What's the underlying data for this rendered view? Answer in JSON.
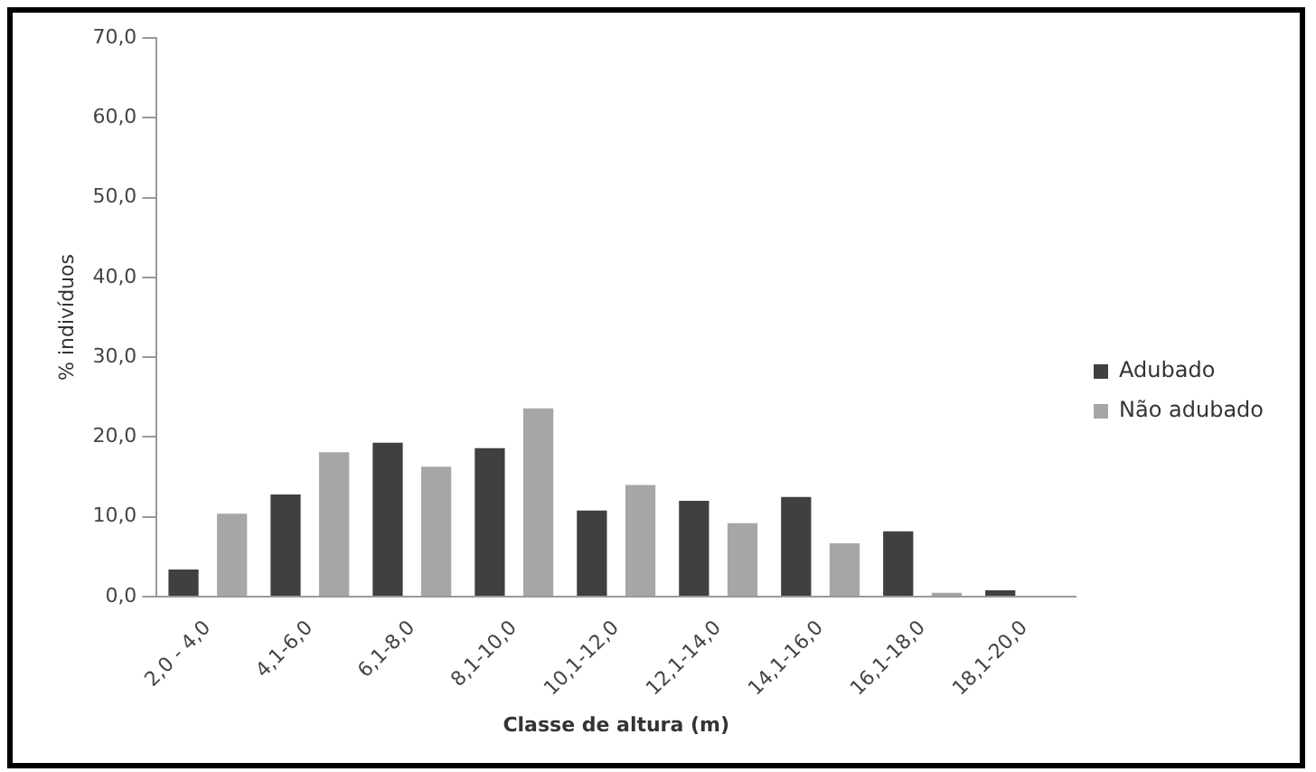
{
  "chart_data": {
    "type": "bar",
    "xlabel": "Classe de altura (m)",
    "ylabel": "% indivíduos",
    "categories": [
      "2,0 - 4,0",
      "4,1-6,0",
      "6,1-8,0",
      "8,1-10,0",
      "10,1-12,0",
      "12,1-14,0",
      "14,1-16,0",
      "16,1-18,0",
      "18,1-20,0"
    ],
    "series": [
      {
        "name": "Adubado",
        "color": "#404040",
        "values": [
          3.4,
          12.8,
          19.3,
          18.6,
          10.8,
          12.0,
          12.5,
          8.2,
          0.8
        ]
      },
      {
        "name": "Não adubado",
        "color": "#a6a6a6",
        "values": [
          10.4,
          18.1,
          16.3,
          23.6,
          14.0,
          9.2,
          6.7,
          0.5,
          null
        ]
      }
    ],
    "ylim": [
      0,
      70
    ],
    "yticks": [
      {
        "value": 0,
        "label": "0,0"
      },
      {
        "value": 10,
        "label": "10,0"
      },
      {
        "value": 20,
        "label": "20,0"
      },
      {
        "value": 30,
        "label": "30,0"
      },
      {
        "value": 40,
        "label": "40,0"
      },
      {
        "value": 50,
        "label": "50,0"
      },
      {
        "value": 60,
        "label": "60,0"
      },
      {
        "value": 70,
        "label": "70,0"
      }
    ],
    "grid": false,
    "legend": "right"
  }
}
